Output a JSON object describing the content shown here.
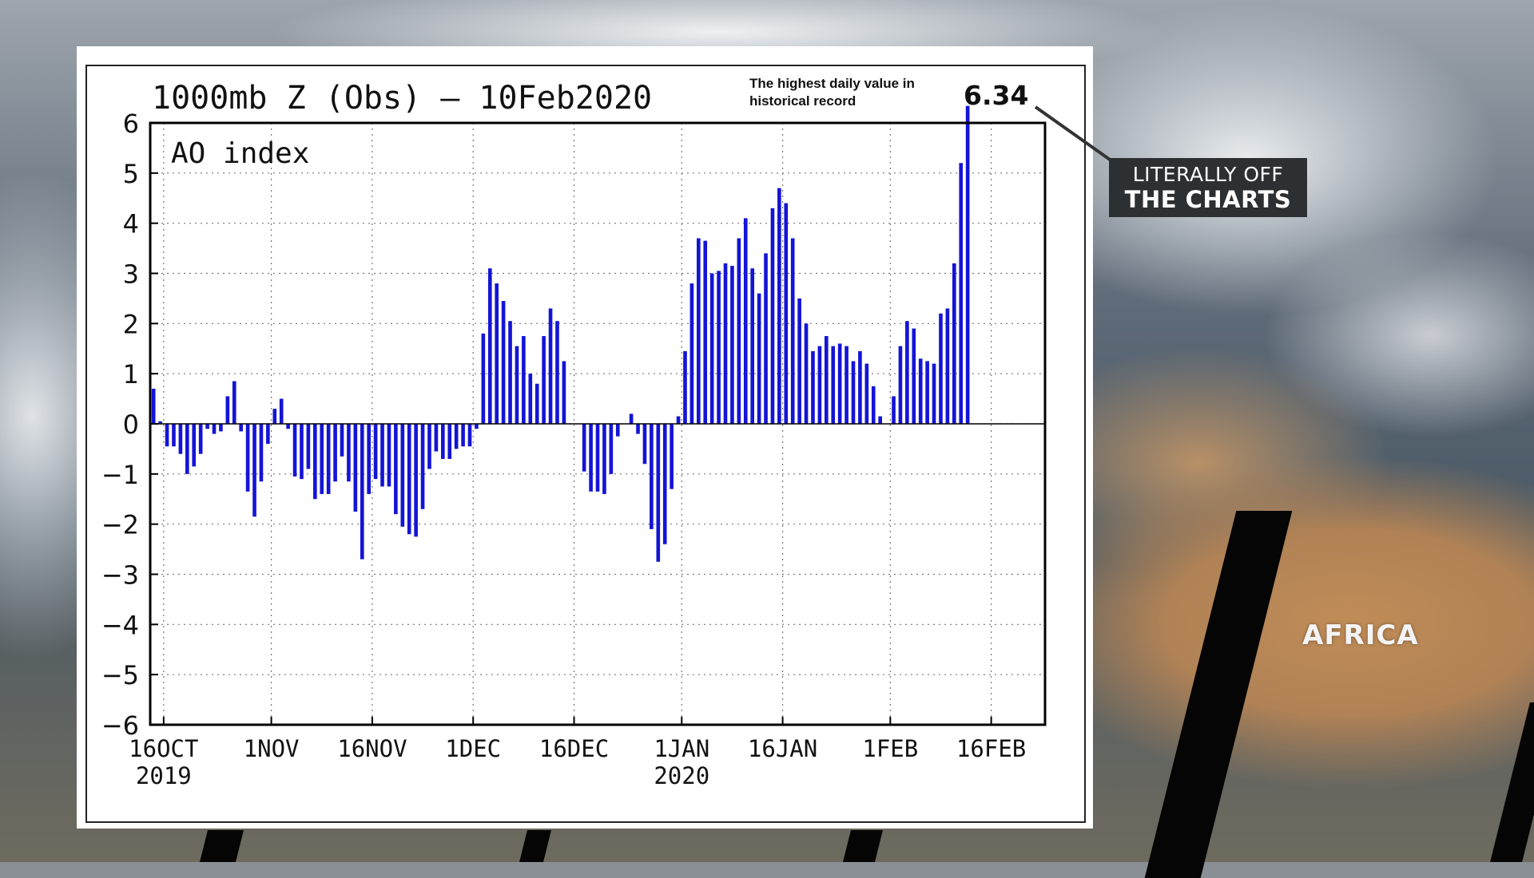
{
  "chart_data": {
    "type": "bar",
    "title": "1000mb Z (Obs) — 10Feb2020",
    "subtitle": "AO index",
    "ylim": [
      -6,
      6
    ],
    "yticks": [
      "6",
      "5",
      "4",
      "3",
      "2",
      "1",
      "0",
      "−1",
      "−2",
      "−3",
      "−4",
      "−5",
      "−6"
    ],
    "ytick_values": [
      6,
      5,
      4,
      3,
      2,
      1,
      0,
      -1,
      -2,
      -3,
      -4,
      -5,
      -6
    ],
    "x_start": "2019-10-14",
    "x_end": "2020-02-24",
    "xticks": [
      {
        "date": "2019-10-16",
        "label": "16OCT",
        "year": "2019"
      },
      {
        "date": "2019-11-01",
        "label": "1NOV",
        "year": ""
      },
      {
        "date": "2019-11-16",
        "label": "16NOV",
        "year": ""
      },
      {
        "date": "2019-12-01",
        "label": "1DEC",
        "year": ""
      },
      {
        "date": "2019-12-16",
        "label": "16DEC",
        "year": ""
      },
      {
        "date": "2020-01-01",
        "label": "1JAN",
        "year": "2020"
      },
      {
        "date": "2020-01-16",
        "label": "16JAN",
        "year": ""
      },
      {
        "date": "2020-02-01",
        "label": "1FEB",
        "year": ""
      },
      {
        "date": "2020-02-16",
        "label": "16FEB",
        "year": ""
      }
    ],
    "grid": true,
    "color": "#1414d6",
    "series": [
      {
        "start_date": "2019-10-14",
        "values": [
          0.7,
          0.05,
          -0.45,
          -0.45,
          -0.6,
          -1.0,
          -0.85,
          -0.6,
          -0.1,
          -0.2,
          -0.15,
          0.55,
          0.85,
          -0.15,
          -1.35,
          -1.85,
          -1.15,
          -0.4,
          0.3,
          0.5,
          -0.1,
          -1.05,
          -1.1,
          -0.9,
          -1.5,
          -1.4,
          -1.4,
          -1.15,
          -0.65,
          -1.15,
          -1.75,
          -2.7,
          -1.4,
          -1.1,
          -1.25,
          -1.25,
          -1.8,
          -2.05,
          -2.2,
          -2.25,
          -1.7,
          -0.9,
          -0.55,
          -0.7,
          -0.7,
          -0.5,
          -0.45,
          -0.45,
          -0.1,
          1.8,
          3.1,
          2.8,
          2.45,
          2.05,
          1.55,
          1.75,
          1.0,
          0.8,
          1.75,
          2.3,
          2.05,
          1.25,
          0.0,
          0.0,
          -0.95,
          -1.35,
          -1.35,
          -1.4,
          -1.0,
          -0.25,
          0.0,
          0.2,
          -0.2,
          -0.8,
          -2.1,
          -2.75,
          -2.4,
          -1.3,
          0.15,
          1.45,
          2.8,
          3.7,
          3.65,
          3.0,
          3.05,
          3.2,
          3.15,
          3.7,
          4.1,
          3.1,
          2.6,
          3.4,
          4.3,
          4.7,
          4.4,
          3.7,
          2.5,
          2.0,
          1.45,
          1.55,
          1.75,
          1.55,
          1.6,
          1.55,
          1.25,
          1.45,
          1.2,
          0.75,
          0.15,
          0.0,
          0.55,
          1.55,
          2.05,
          1.9,
          1.3,
          1.25,
          1.2,
          2.2,
          2.3,
          3.2,
          5.2,
          6.34
        ]
      }
    ],
    "annotation": {
      "note": "The highest daily value in historical record",
      "value_label": "6.34",
      "callout_line1": "LITERALLY OFF",
      "callout_line2": "THE CHARTS"
    }
  },
  "map_label": "AFRICA"
}
